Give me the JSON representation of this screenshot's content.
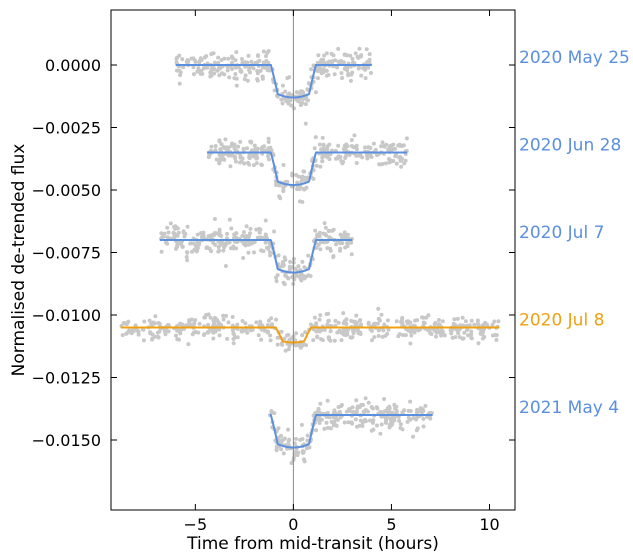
{
  "chart_data": {
    "type": "scatter",
    "xlabel": "Time from mid-transit (hours)",
    "ylabel": "Normalised de-trended flux",
    "xlim": [
      -9.3,
      11.3
    ],
    "ylim": [
      -0.0178,
      0.0022
    ],
    "xticks": [
      -5,
      0,
      5,
      10
    ],
    "xtick_labels": [
      "−5",
      "0",
      "5",
      "10"
    ],
    "yticks": [
      0.0,
      -0.0025,
      -0.005,
      -0.0075,
      -0.01,
      -0.0125,
      -0.015
    ],
    "ytick_labels": [
      "0.0000",
      "−0.0025",
      "−0.0050",
      "−0.0075",
      "−0.0100",
      "−0.0125",
      "−0.0150"
    ],
    "grid": false,
    "vline_x": 0,
    "colors": {
      "points": "#c8c8c8",
      "model_blue": "#5b8fe0",
      "model_orange": "#f0a010",
      "vline": "#888888"
    },
    "series": [
      {
        "name": "2020 May 25",
        "color": "#5b8fe0",
        "baseline": 0.0,
        "depth": 0.0013,
        "x_range": [
          -6.0,
          4.0
        ],
        "ingress": [
          -1.15,
          1.15
        ],
        "scatter": 0.00045
      },
      {
        "name": "2020 Jun 28",
        "color": "#5b8fe0",
        "baseline": -0.0035,
        "depth": 0.0013,
        "x_range": [
          -4.4,
          5.8
        ],
        "ingress": [
          -1.15,
          1.15
        ],
        "scatter": 0.00045
      },
      {
        "name": "2020 Jul 7",
        "color": "#5b8fe0",
        "baseline": -0.007,
        "depth": 0.0013,
        "x_range": [
          -6.8,
          3.0
        ],
        "ingress": [
          -1.15,
          1.15
        ],
        "scatter": 0.00045
      },
      {
        "name": "2020 Jul 8",
        "color": "#f0a010",
        "baseline": -0.0105,
        "depth": 0.0006,
        "x_range": [
          -8.8,
          10.5
        ],
        "ingress": [
          -0.9,
          0.9
        ],
        "scatter": 0.0004
      },
      {
        "name": "2021 May 4",
        "color": "#5b8fe0",
        "baseline": -0.014,
        "depth": 0.0013,
        "x_range": [
          -1.2,
          7.1
        ],
        "ingress": [
          -1.15,
          1.15
        ],
        "scatter": 0.00045
      }
    ]
  }
}
